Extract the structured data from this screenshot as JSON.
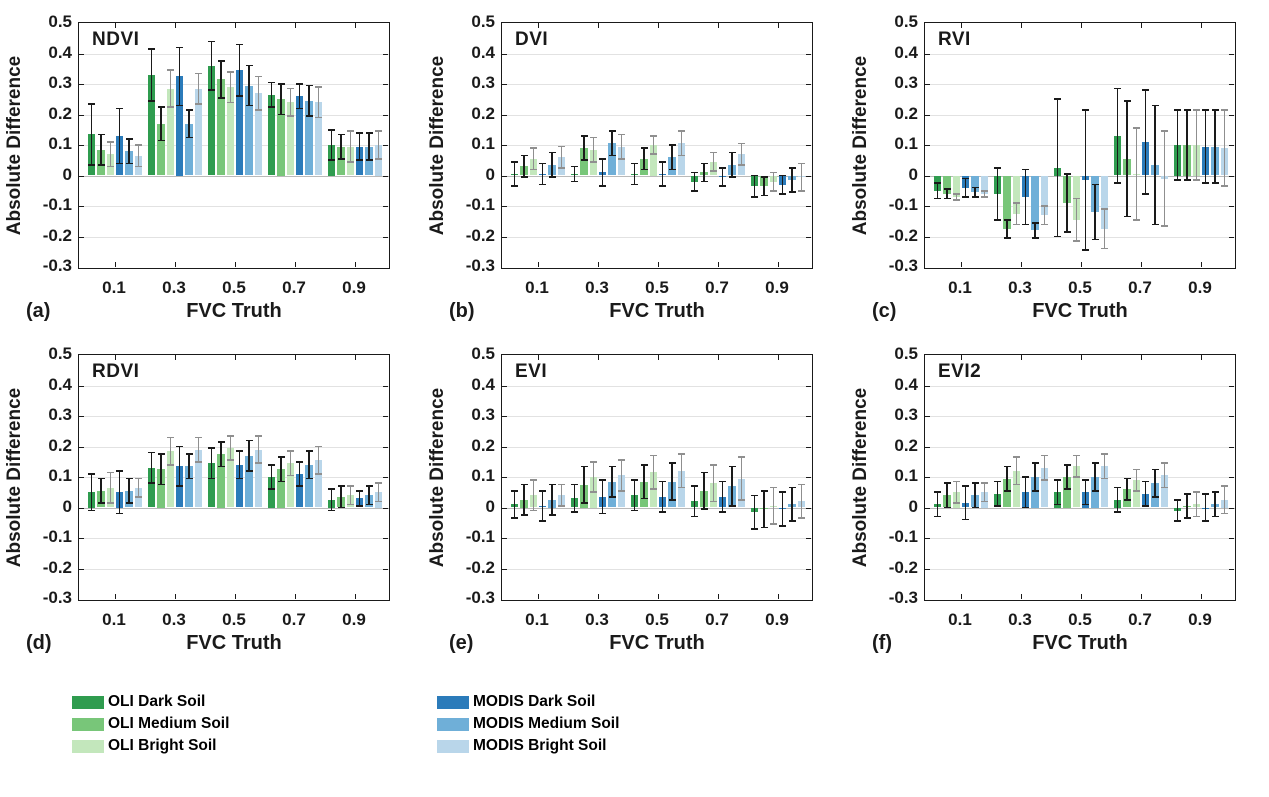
{
  "axis": {
    "ylabel": "Absolute Difference",
    "xlabel": "FVC Truth",
    "ylim": [
      -0.3,
      0.5
    ],
    "yticks": [
      0.5,
      0.4,
      0.3,
      0.2,
      0.1,
      0,
      -0.1,
      -0.2,
      -0.3
    ],
    "categories": [
      "0.1",
      "0.3",
      "0.5",
      "0.7",
      "0.9"
    ],
    "grid": true,
    "legend_position": "below-figure"
  },
  "legend": {
    "entries": [
      {
        "label": "OLI Dark Soil",
        "color": "#2f9c4f",
        "error_color": "#1a1a1a"
      },
      {
        "label": "OLI Medium Soil",
        "color": "#78c679",
        "error_color": "#1a1a1a"
      },
      {
        "label": "OLI Bright Soil",
        "color": "#c3e7bc",
        "error_color": "#8f8f8f"
      },
      {
        "label": "MODIS Dark Soil",
        "color": "#2b7bba",
        "error_color": "#1a1a1a"
      },
      {
        "label": "MODIS Medium Soil",
        "color": "#6fafd8",
        "error_color": "#1a1a1a"
      },
      {
        "label": "MODIS Bright Soil",
        "color": "#b9d6ea",
        "error_color": "#8f8f8f"
      }
    ]
  },
  "chart_data": [
    {
      "type": "bar",
      "panel_label": "(a)",
      "title": "NDVI",
      "categories": [
        "0.1",
        "0.3",
        "0.5",
        "0.7",
        "0.9"
      ],
      "series": [
        {
          "name": "OLI Dark Soil",
          "values": [
            0.135,
            0.33,
            0.36,
            0.265,
            0.1
          ],
          "errors": [
            0.1,
            0.085,
            0.08,
            0.04,
            0.05
          ]
        },
        {
          "name": "OLI Medium Soil",
          "values": [
            0.085,
            0.17,
            0.315,
            0.25,
            0.095
          ],
          "errors": [
            0.05,
            0.055,
            0.06,
            0.05,
            0.04
          ]
        },
        {
          "name": "OLI Bright Soil",
          "values": [
            0.07,
            0.285,
            0.29,
            0.24,
            0.095
          ],
          "errors": [
            0.04,
            0.06,
            0.05,
            0.045,
            0.05
          ]
        },
        {
          "name": "MODIS Dark Soil",
          "values": [
            0.13,
            0.325,
            0.345,
            0.26,
            0.095
          ],
          "errors": [
            0.09,
            0.095,
            0.085,
            0.04,
            0.045
          ]
        },
        {
          "name": "MODIS Medium Soil",
          "values": [
            0.08,
            0.17,
            0.295,
            0.245,
            0.095
          ],
          "errors": [
            0.04,
            0.045,
            0.065,
            0.05,
            0.045
          ]
        },
        {
          "name": "MODIS Bright Soil",
          "values": [
            0.065,
            0.285,
            0.27,
            0.24,
            0.1
          ],
          "errors": [
            0.035,
            0.05,
            0.055,
            0.05,
            0.045
          ]
        }
      ]
    },
    {
      "type": "bar",
      "panel_label": "(b)",
      "title": "DVI",
      "categories": [
        "0.1",
        "0.3",
        "0.5",
        "0.7",
        "0.9"
      ],
      "series": [
        {
          "name": "OLI Dark Soil",
          "values": [
            0.005,
            0.005,
            0.005,
            -0.02,
            -0.035
          ],
          "errors": [
            0.04,
            0.025,
            0.035,
            0.03,
            0.035
          ]
        },
        {
          "name": "OLI Medium Soil",
          "values": [
            0.03,
            0.09,
            0.055,
            0.01,
            -0.035
          ],
          "errors": [
            0.035,
            0.04,
            0.035,
            0.03,
            0.03
          ]
        },
        {
          "name": "OLI Bright Soil",
          "values": [
            0.055,
            0.085,
            0.1,
            0.045,
            -0.02
          ],
          "errors": [
            0.035,
            0.04,
            0.03,
            0.03,
            0.03
          ]
        },
        {
          "name": "MODIS Dark Soil",
          "values": [
            0.005,
            0.01,
            0.005,
            -0.005,
            -0.03
          ],
          "errors": [
            0.035,
            0.045,
            0.04,
            0.03,
            0.03
          ]
        },
        {
          "name": "MODIS Medium Soil",
          "values": [
            0.035,
            0.105,
            0.06,
            0.035,
            -0.015
          ],
          "errors": [
            0.04,
            0.04,
            0.04,
            0.04,
            0.04
          ]
        },
        {
          "name": "MODIS Bright Soil",
          "values": [
            0.06,
            0.095,
            0.105,
            0.07,
            -0.005
          ],
          "errors": [
            0.035,
            0.04,
            0.04,
            0.035,
            0.045
          ]
        }
      ]
    },
    {
      "type": "bar",
      "panel_label": "(c)",
      "title": "RVI",
      "categories": [
        "0.1",
        "0.3",
        "0.5",
        "0.7",
        "0.9"
      ],
      "series": [
        {
          "name": "OLI Dark Soil",
          "values": [
            -0.05,
            -0.06,
            0.025,
            0.13,
            0.1
          ],
          "errors": [
            0.025,
            0.085,
            0.225,
            0.155,
            0.115
          ]
        },
        {
          "name": "OLI Medium Soil",
          "values": [
            -0.06,
            -0.175,
            -0.09,
            0.055,
            0.1
          ],
          "errors": [
            0.015,
            0.03,
            0.095,
            0.19,
            0.115
          ]
        },
        {
          "name": "OLI Bright Soil",
          "values": [
            -0.07,
            -0.125,
            -0.145,
            0.005,
            0.1
          ],
          "errors": [
            0.01,
            0.035,
            0.07,
            0.15,
            0.115
          ]
        },
        {
          "name": "MODIS Dark Soil",
          "values": [
            -0.04,
            -0.07,
            -0.015,
            0.11,
            0.095
          ],
          "errors": [
            0.03,
            0.09,
            0.23,
            0.17,
            0.12
          ]
        },
        {
          "name": "MODIS Medium Soil",
          "values": [
            -0.055,
            -0.18,
            -0.12,
            0.035,
            0.095
          ],
          "errors": [
            0.015,
            0.025,
            0.09,
            0.195,
            0.12
          ]
        },
        {
          "name": "MODIS Bright Soil",
          "values": [
            -0.06,
            -0.13,
            -0.175,
            -0.01,
            0.09
          ],
          "errors": [
            0.01,
            0.03,
            0.065,
            0.155,
            0.125
          ]
        }
      ]
    },
    {
      "type": "bar",
      "panel_label": "(d)",
      "title": "RDVI",
      "categories": [
        "0.1",
        "0.3",
        "0.5",
        "0.7",
        "0.9"
      ],
      "series": [
        {
          "name": "OLI Dark Soil",
          "values": [
            0.05,
            0.13,
            0.145,
            0.1,
            0.025
          ],
          "errors": [
            0.06,
            0.05,
            0.05,
            0.04,
            0.035
          ]
        },
        {
          "name": "OLI Medium Soil",
          "values": [
            0.055,
            0.125,
            0.175,
            0.125,
            0.035
          ],
          "errors": [
            0.04,
            0.05,
            0.04,
            0.04,
            0.035
          ]
        },
        {
          "name": "OLI Bright Soil",
          "values": [
            0.065,
            0.185,
            0.195,
            0.145,
            0.04
          ],
          "errors": [
            0.05,
            0.045,
            0.04,
            0.04,
            0.03
          ]
        },
        {
          "name": "MODIS Dark Soil",
          "values": [
            0.05,
            0.135,
            0.14,
            0.11,
            0.03
          ],
          "errors": [
            0.07,
            0.065,
            0.045,
            0.04,
            0.025
          ]
        },
        {
          "name": "MODIS Medium Soil",
          "values": [
            0.055,
            0.135,
            0.17,
            0.14,
            0.04
          ],
          "errors": [
            0.04,
            0.04,
            0.05,
            0.045,
            0.03
          ]
        },
        {
          "name": "MODIS Bright Soil",
          "values": [
            0.065,
            0.19,
            0.19,
            0.155,
            0.05
          ],
          "errors": [
            0.03,
            0.04,
            0.045,
            0.045,
            0.03
          ]
        }
      ]
    },
    {
      "type": "bar",
      "panel_label": "(e)",
      "title": "EVI",
      "categories": [
        "0.1",
        "0.3",
        "0.5",
        "0.7",
        "0.9"
      ],
      "series": [
        {
          "name": "OLI Dark Soil",
          "values": [
            0.01,
            0.03,
            0.04,
            0.02,
            -0.015
          ],
          "errors": [
            0.045,
            0.045,
            0.05,
            0.05,
            0.055
          ]
        },
        {
          "name": "OLI Medium Soil",
          "values": [
            0.025,
            0.075,
            0.085,
            0.055,
            -0.005
          ],
          "errors": [
            0.05,
            0.06,
            0.055,
            0.06,
            0.06
          ]
        },
        {
          "name": "OLI Bright Soil",
          "values": [
            0.04,
            0.1,
            0.115,
            0.08,
            0.005
          ],
          "errors": [
            0.05,
            0.05,
            0.055,
            0.06,
            0.06
          ]
        },
        {
          "name": "MODIS Dark Soil",
          "values": [
            0.005,
            0.035,
            0.035,
            0.035,
            -0.005
          ],
          "errors": [
            0.05,
            0.055,
            0.05,
            0.05,
            0.055
          ]
        },
        {
          "name": "MODIS Medium Soil",
          "values": [
            0.025,
            0.085,
            0.085,
            0.07,
            0.01
          ],
          "errors": [
            0.05,
            0.05,
            0.06,
            0.065,
            0.055
          ]
        },
        {
          "name": "MODIS Bright Soil",
          "values": [
            0.04,
            0.105,
            0.12,
            0.095,
            0.02
          ],
          "errors": [
            0.035,
            0.05,
            0.055,
            0.07,
            0.055
          ]
        }
      ]
    },
    {
      "type": "bar",
      "panel_label": "(f)",
      "title": "EVI2",
      "categories": [
        "0.1",
        "0.3",
        "0.5",
        "0.7",
        "0.9"
      ],
      "series": [
        {
          "name": "OLI Dark Soil",
          "values": [
            0.01,
            0.045,
            0.05,
            0.025,
            -0.01
          ],
          "errors": [
            0.04,
            0.04,
            0.04,
            0.04,
            0.035
          ]
        },
        {
          "name": "OLI Medium Soil",
          "values": [
            0.04,
            0.095,
            0.1,
            0.06,
            0.005
          ],
          "errors": [
            0.04,
            0.04,
            0.04,
            0.035,
            0.04
          ]
        },
        {
          "name": "OLI Bright Soil",
          "values": [
            0.05,
            0.12,
            0.135,
            0.09,
            0.01
          ],
          "errors": [
            0.035,
            0.045,
            0.035,
            0.035,
            0.04
          ]
        },
        {
          "name": "MODIS Dark Soil",
          "values": [
            0.015,
            0.05,
            0.05,
            0.045,
            0.0
          ],
          "errors": [
            0.055,
            0.05,
            0.04,
            0.04,
            0.045
          ]
        },
        {
          "name": "MODIS Medium Soil",
          "values": [
            0.04,
            0.1,
            0.1,
            0.08,
            0.01
          ],
          "errors": [
            0.04,
            0.045,
            0.045,
            0.045,
            0.04
          ]
        },
        {
          "name": "MODIS Bright Soil",
          "values": [
            0.05,
            0.13,
            0.135,
            0.105,
            0.025
          ],
          "errors": [
            0.03,
            0.04,
            0.04,
            0.04,
            0.045
          ]
        }
      ]
    }
  ]
}
